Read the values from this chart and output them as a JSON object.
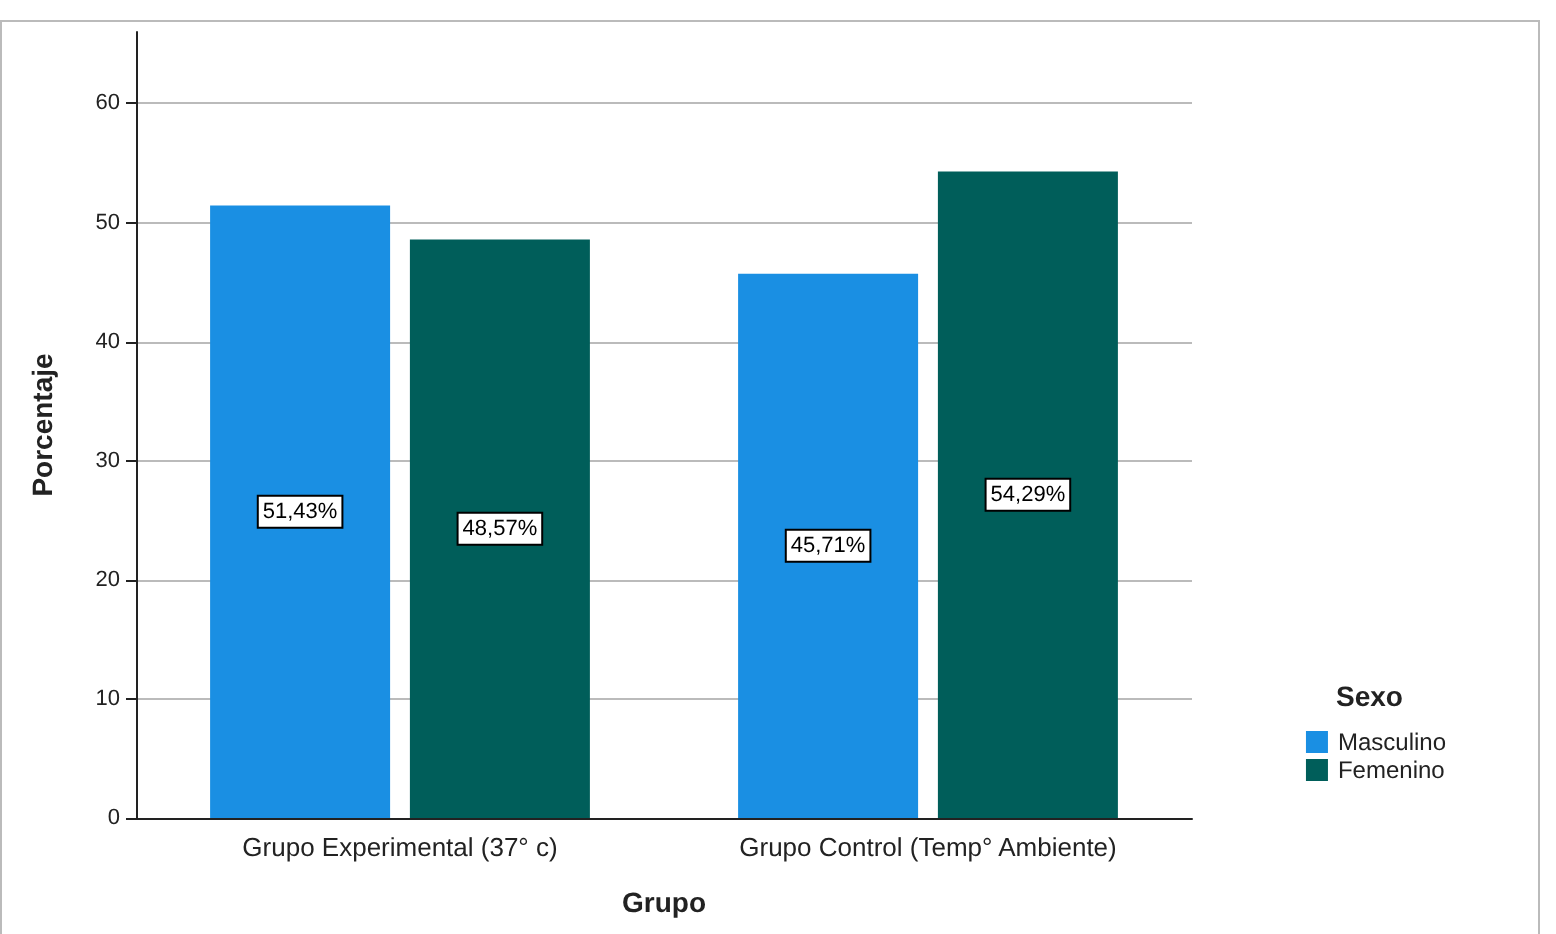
{
  "chart_data": {
    "type": "bar",
    "xlabel": "Grupo",
    "ylabel": "Porcentaje",
    "legend_title": "Sexo",
    "categories": [
      "Grupo Experimental (37° c)",
      "Grupo Control (Temp° Ambiente)"
    ],
    "series": [
      {
        "name": "Masculino",
        "color": "#1a8fe3",
        "values": [
          51.43,
          45.71
        ],
        "value_labels": [
          "51,43%",
          "45,71%"
        ]
      },
      {
        "name": "Femenino",
        "color": "#005e5a",
        "values": [
          48.57,
          54.29
        ],
        "value_labels": [
          "48,57%",
          "54,29%"
        ]
      }
    ],
    "ylim": [
      0,
      66
    ],
    "yticks": [
      0,
      10,
      20,
      30,
      40,
      50,
      60
    ],
    "grid": "y",
    "legend": "right"
  }
}
